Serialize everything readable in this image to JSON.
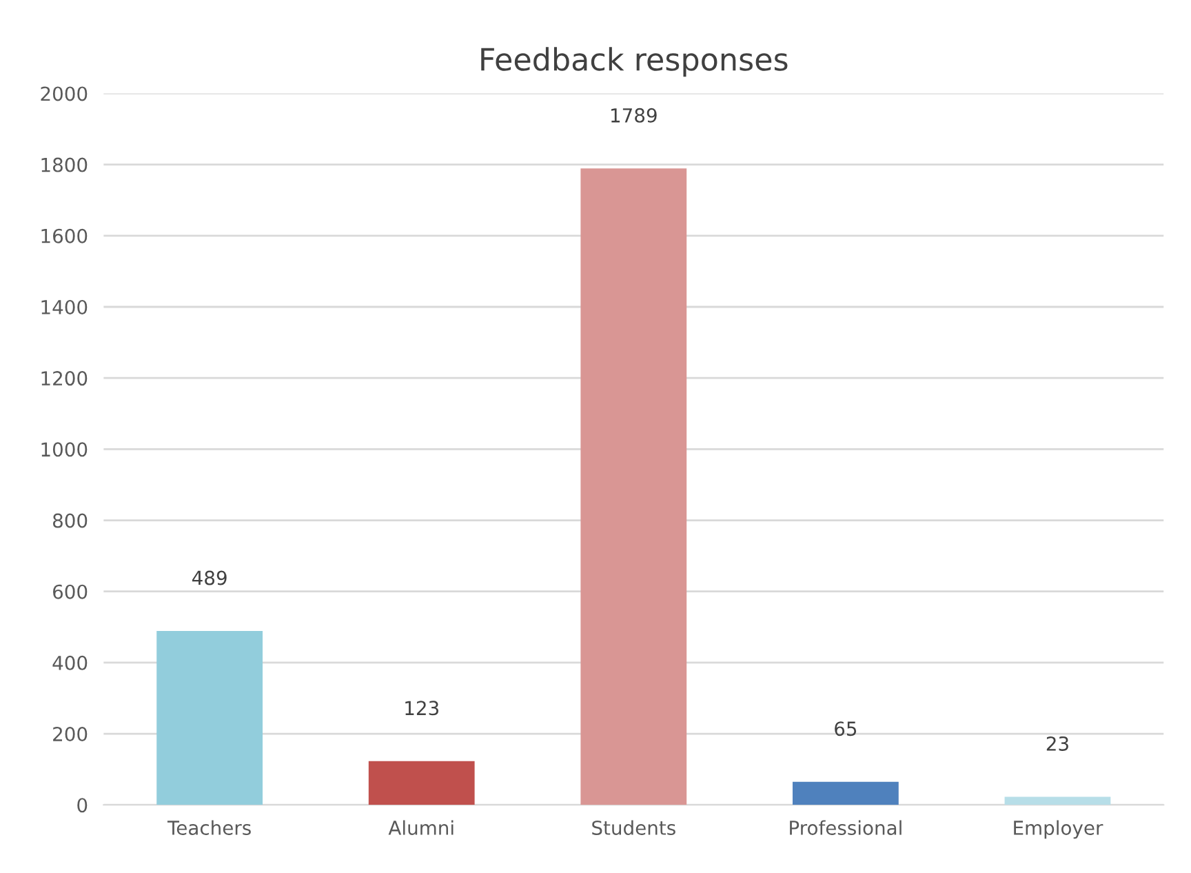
{
  "chart_data": {
    "type": "bar",
    "title": "Feedback responses",
    "categories": [
      "Teachers",
      "Alumni",
      "Students",
      "Professional",
      "Employer"
    ],
    "values": [
      489,
      123,
      1789,
      65,
      23
    ],
    "colors": [
      "#92cddc",
      "#c0504d",
      "#d99694",
      "#4f81bd",
      "#b7dee8"
    ],
    "ylim": [
      0,
      2000
    ],
    "yticks": [
      0,
      200,
      400,
      600,
      800,
      1000,
      1200,
      1400,
      1600,
      1800,
      2000
    ],
    "grid": "y",
    "data_labels": true
  }
}
